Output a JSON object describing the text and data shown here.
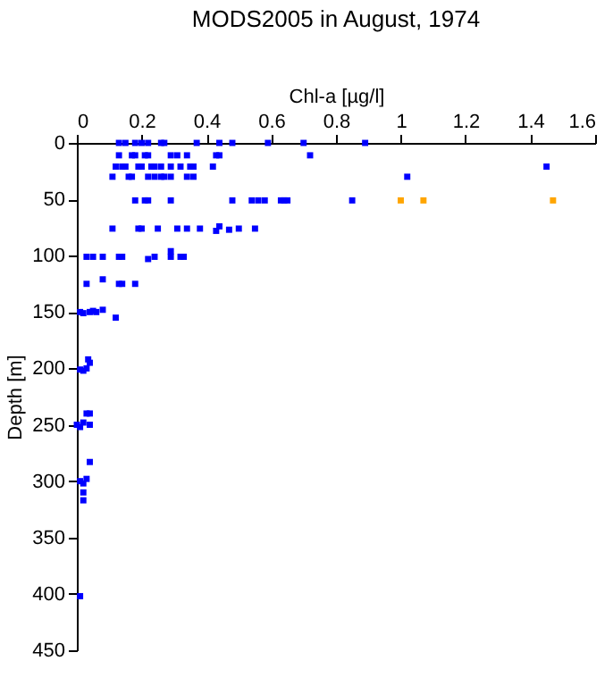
{
  "chart_data": {
    "type": "scatter",
    "title": "MODS2005 in August, 1974",
    "xlabel": "Chl-a [µg/l]",
    "ylabel": "Depth [m]",
    "xlim": [
      0,
      1.6
    ],
    "xticks": [
      0,
      0.2,
      0.4,
      0.6,
      0.8,
      1,
      1.2,
      1.4,
      1.6
    ],
    "ylim": [
      450,
      0
    ],
    "yticks": [
      0,
      50,
      100,
      150,
      200,
      250,
      300,
      350,
      400,
      450
    ],
    "grid": false,
    "legend": false,
    "marker": "square",
    "series": [
      {
        "color": "#0000ff",
        "x": [
          0.13,
          0.15,
          0.18,
          0.2,
          0.22,
          0.26,
          0.27,
          0.37,
          0.44,
          0.48,
          0.59,
          0.7,
          0.89,
          0.13,
          0.17,
          0.18,
          0.21,
          0.22,
          0.29,
          0.31,
          0.34,
          0.43,
          0.44,
          0.72,
          0.12,
          0.14,
          0.15,
          0.19,
          0.2,
          0.23,
          0.24,
          0.26,
          0.29,
          0.32,
          0.35,
          0.36,
          0.42,
          1.45,
          0.11,
          0.16,
          0.17,
          0.22,
          0.24,
          0.26,
          0.27,
          0.29,
          0.34,
          0.36,
          1.02,
          0.18,
          0.21,
          0.22,
          0.29,
          0.48,
          0.54,
          0.56,
          0.58,
          0.63,
          0.64,
          0.65,
          0.85,
          0.11,
          0.19,
          0.2,
          0.25,
          0.31,
          0.34,
          0.38,
          0.43,
          0.44,
          0.47,
          0.5,
          0.55,
          0.03,
          0.05,
          0.08,
          0.13,
          0.14,
          0.22,
          0.24,
          0.29,
          0.32,
          0.33,
          0.29,
          0.03,
          0.08,
          0.13,
          0.14,
          0.18,
          0.01,
          0.02,
          0.04,
          0.05,
          0.06,
          0.08,
          0.12,
          0.01,
          0.02,
          0.03,
          0.035,
          0.04,
          0.0,
          0.01,
          0.02,
          0.03,
          0.04,
          0.04,
          0.01,
          0.02,
          0.03,
          0.04,
          0.02,
          0.02,
          0.01
        ],
        "values": [
          0,
          0,
          0,
          0,
          0,
          0,
          0,
          0,
          0,
          0,
          0,
          0,
          0,
          11,
          11,
          11,
          11,
          11,
          11,
          11,
          11,
          11,
          11,
          11,
          21,
          21,
          21,
          21,
          21,
          21,
          21,
          21,
          21,
          21,
          21,
          21,
          21,
          21,
          30,
          30,
          30,
          30,
          30,
          30,
          30,
          30,
          30,
          30,
          30,
          51,
          51,
          51,
          51,
          51,
          51,
          51,
          51,
          51,
          51,
          51,
          51,
          76,
          76,
          76,
          76,
          76,
          76,
          76,
          78,
          74,
          77,
          76,
          76,
          101,
          101,
          101,
          101,
          101,
          103,
          101,
          101,
          101,
          101,
          96,
          125,
          121,
          125,
          125,
          125,
          150,
          151,
          150,
          149,
          150,
          148,
          155,
          201,
          202,
          200,
          192,
          195,
          250,
          252,
          248,
          240,
          240,
          250,
          300,
          302,
          298,
          283,
          310,
          317,
          402
        ]
      },
      {
        "color": "#ffa500",
        "x": [
          1.0,
          1.07,
          1.47
        ],
        "values": [
          51,
          51,
          51
        ]
      }
    ]
  }
}
